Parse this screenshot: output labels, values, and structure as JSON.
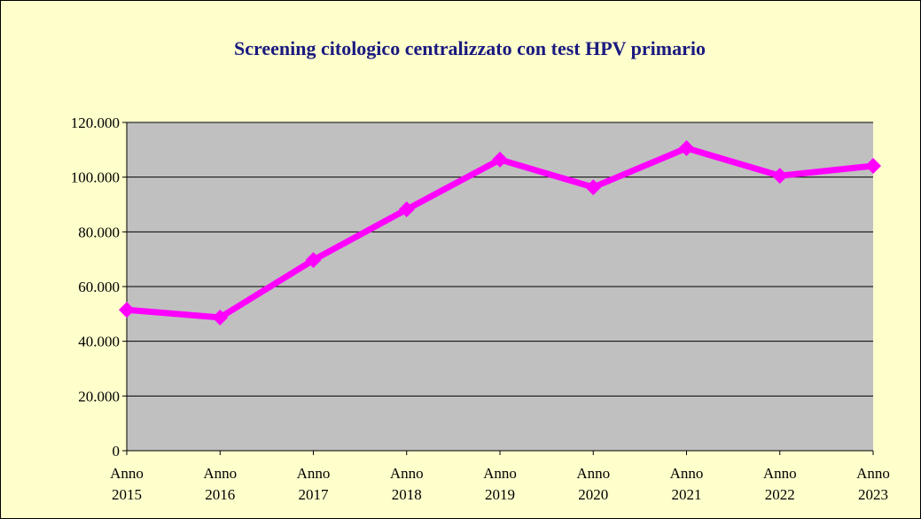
{
  "chart_data": {
    "type": "line",
    "title": "Screening citologico centralizzato con test HPV primario",
    "categories": [
      "Anno 2015",
      "Anno 2016",
      "Anno 2017",
      "Anno 2018",
      "Anno 2019",
      "Anno 2020",
      "Anno 2021",
      "Anno 2022",
      "Anno 2023"
    ],
    "values": [
      51500,
      48700,
      69700,
      88200,
      106400,
      96300,
      110600,
      100500,
      104100
    ],
    "color": "#ff00ff",
    "ylim": [
      0,
      120000
    ],
    "yticks": [
      0,
      {
        "value": 20000,
        "label": "20.000"
      },
      {
        "value": 40000,
        "label": "40.000"
      },
      {
        "value": 60000,
        "label": "60.000"
      },
      {
        "value": 80000,
        "label": "80.000"
      },
      {
        "value": 100000,
        "label": "100.000"
      },
      {
        "value": 120000,
        "label": "120.000"
      }
    ],
    "grid": true
  }
}
